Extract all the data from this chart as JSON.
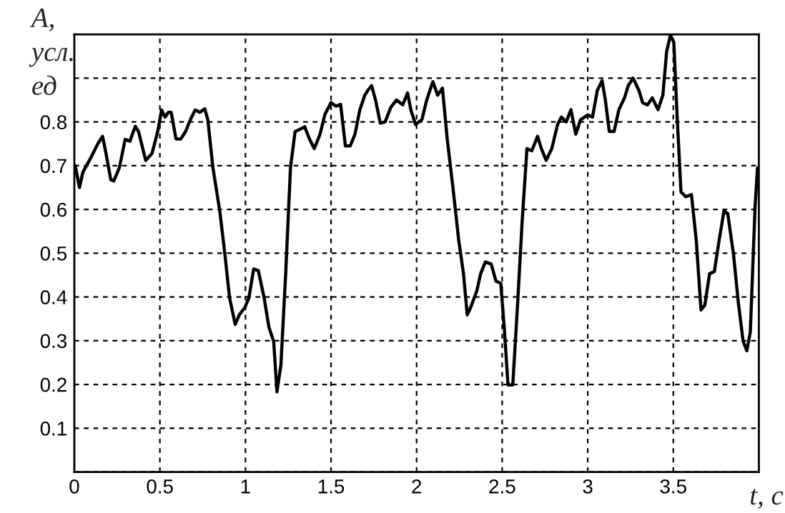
{
  "chart_data": {
    "type": "line",
    "xlabel": "t, c",
    "ylabel": "A,\nусл.\nед",
    "xlim": [
      0,
      4
    ],
    "ylim": [
      0,
      1
    ],
    "xticks": [
      0,
      0.5,
      1,
      1.5,
      2,
      2.5,
      3,
      3.5,
      {
        "value": 4,
        "label": null
      }
    ],
    "yticks": [
      {
        "value": 0,
        "label": null
      },
      0.1,
      0.2,
      0.3,
      0.4,
      0.5,
      0.6,
      0.7,
      0.8,
      {
        "value": 0.9,
        "label": null
      }
    ],
    "grid": true,
    "line_style": "solid",
    "marker": "none",
    "series": [
      {
        "color": "#000000",
        "x": [
          0.005,
          0.03,
          0.05,
          0.095,
          0.137,
          0.165,
          0.185,
          0.213,
          0.23,
          0.263,
          0.297,
          0.325,
          0.356,
          0.375,
          0.417,
          0.454,
          0.487,
          0.51,
          0.53,
          0.55,
          0.566,
          0.594,
          0.622,
          0.65,
          0.678,
          0.706,
          0.734,
          0.762,
          0.78,
          0.81,
          0.85,
          0.88,
          0.907,
          0.94,
          0.964,
          0.997,
          1.02,
          1.048,
          1.075,
          1.109,
          1.137,
          1.165,
          1.184,
          1.207,
          1.235,
          1.263,
          1.29,
          1.318,
          1.346,
          1.374,
          1.402,
          1.436,
          1.464,
          1.5,
          1.528,
          1.556,
          1.584,
          1.612,
          1.64,
          1.668,
          1.696,
          1.715,
          1.737,
          1.76,
          1.788,
          1.816,
          1.849,
          1.883,
          1.919,
          1.947,
          1.966,
          1.994,
          2.031,
          2.059,
          2.095,
          2.123,
          2.151,
          2.179,
          2.212,
          2.246,
          2.274,
          2.296,
          2.316,
          2.352,
          2.374,
          2.402,
          2.436,
          2.464,
          2.492,
          2.514,
          2.534,
          2.562,
          2.589,
          2.617,
          2.645,
          2.673,
          2.707,
          2.729,
          2.757,
          2.79,
          2.824,
          2.846,
          2.874,
          2.902,
          2.93,
          2.958,
          3.0,
          3.028,
          3.056,
          3.084,
          3.103,
          3.126,
          3.154,
          3.182,
          3.215,
          3.237,
          3.265,
          3.299,
          3.321,
          3.349,
          3.377,
          3.411,
          3.439,
          3.461,
          3.483,
          3.503,
          3.522,
          3.545,
          3.573,
          3.606,
          3.634,
          3.662,
          3.684,
          3.712,
          3.74,
          3.768,
          3.796,
          3.818,
          3.852,
          3.88,
          3.908,
          3.93,
          3.95,
          3.978,
          3.992
        ],
        "values": [
          0.7,
          0.65,
          0.685,
          0.717,
          0.75,
          0.767,
          0.728,
          0.668,
          0.665,
          0.695,
          0.76,
          0.756,
          0.79,
          0.778,
          0.712,
          0.728,
          0.778,
          0.827,
          0.811,
          0.822,
          0.822,
          0.761,
          0.761,
          0.778,
          0.805,
          0.827,
          0.822,
          0.83,
          0.805,
          0.695,
          0.596,
          0.497,
          0.398,
          0.337,
          0.359,
          0.376,
          0.398,
          0.464,
          0.46,
          0.398,
          0.331,
          0.298,
          0.183,
          0.244,
          0.453,
          0.695,
          0.778,
          0.783,
          0.789,
          0.761,
          0.739,
          0.772,
          0.817,
          0.844,
          0.836,
          0.84,
          0.745,
          0.745,
          0.772,
          0.827,
          0.86,
          0.872,
          0.883,
          0.85,
          0.797,
          0.8,
          0.833,
          0.85,
          0.839,
          0.866,
          0.828,
          0.794,
          0.805,
          0.85,
          0.892,
          0.861,
          0.877,
          0.761,
          0.651,
          0.53,
          0.453,
          0.359,
          0.376,
          0.414,
          0.453,
          0.48,
          0.475,
          0.436,
          0.431,
          0.32,
          0.199,
          0.199,
          0.376,
          0.574,
          0.739,
          0.734,
          0.767,
          0.739,
          0.712,
          0.739,
          0.794,
          0.811,
          0.8,
          0.828,
          0.772,
          0.805,
          0.816,
          0.811,
          0.872,
          0.894,
          0.85,
          0.778,
          0.778,
          0.828,
          0.855,
          0.883,
          0.9,
          0.872,
          0.844,
          0.839,
          0.855,
          0.828,
          0.861,
          0.96,
          0.998,
          0.982,
          0.816,
          0.64,
          0.629,
          0.634,
          0.53,
          0.37,
          0.381,
          0.453,
          0.458,
          0.53,
          0.596,
          0.591,
          0.497,
          0.387,
          0.299,
          0.277,
          0.32,
          0.607,
          0.695
        ]
      }
    ]
  }
}
